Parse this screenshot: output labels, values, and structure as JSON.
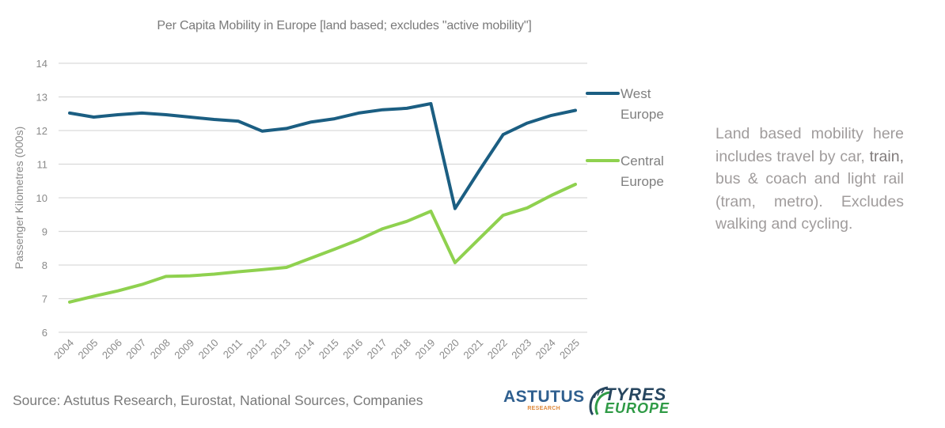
{
  "chart_data": {
    "type": "line",
    "title": "Per Capita Mobility in Europe [land based; excludes \"active mobility\"]",
    "xlabel": "",
    "ylabel": "Passenger Kilometres (000s)",
    "ylim": [
      6,
      14
    ],
    "yticks": [
      "6",
      "7",
      "8",
      "9",
      "10",
      "11",
      "12",
      "13",
      "14"
    ],
    "grid": true,
    "legend_position": "right",
    "categories": [
      "2004",
      "2005",
      "2006",
      "2007",
      "2008",
      "2009",
      "2010",
      "2011",
      "2012",
      "2013",
      "2014",
      "2015",
      "2016",
      "2017",
      "2018",
      "2019",
      "2020",
      "2021",
      "2022",
      "2023",
      "2024",
      "2025"
    ],
    "series": [
      {
        "name": "West Europe",
        "legend_lines": [
          "West",
          "Europe"
        ],
        "color": "#1b5e82",
        "values": [
          12.52,
          12.4,
          12.47,
          12.52,
          12.47,
          12.4,
          12.33,
          12.28,
          11.98,
          12.06,
          12.25,
          12.35,
          12.52,
          12.62,
          12.66,
          12.8,
          9.68,
          10.8,
          11.88,
          12.22,
          12.45,
          12.6
        ]
      },
      {
        "name": "Central Europe",
        "legend_lines": [
          "Central",
          "Europe"
        ],
        "color": "#8fd14f",
        "values": [
          6.9,
          7.07,
          7.23,
          7.42,
          7.66,
          7.68,
          7.73,
          7.8,
          7.86,
          7.93,
          8.2,
          8.47,
          8.75,
          9.08,
          9.3,
          9.6,
          8.07,
          8.78,
          9.48,
          9.7,
          10.07,
          10.4
        ]
      }
    ]
  },
  "note": {
    "before": "Land based mobility here includes travel by car, ",
    "emphasis": "train,",
    "after": " bus & coach and light rail (tram, metro). Excludes walking and cycling."
  },
  "source": "Source: Astutus Research, Eurostat, National Sources, Companies",
  "logos": {
    "astutus_main": "ASTUTUS",
    "astutus_sub": "RESEARCH",
    "tyres_top": "TYRES",
    "tyres_bottom": "EUROPE"
  }
}
